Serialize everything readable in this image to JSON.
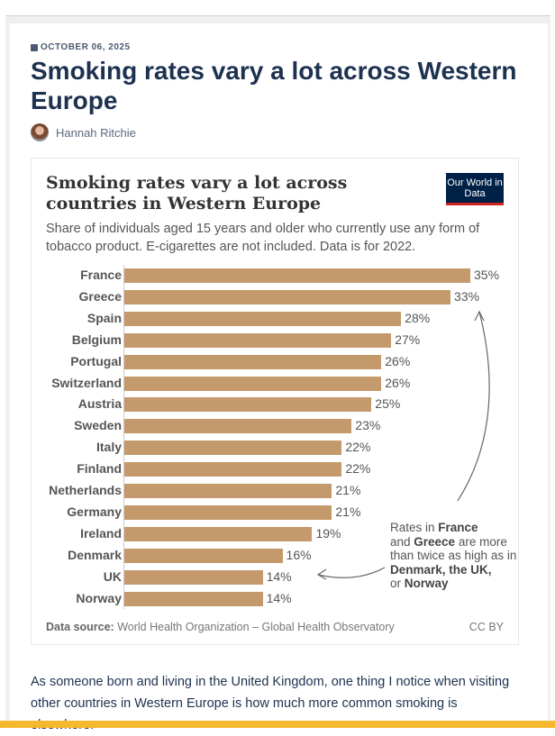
{
  "article": {
    "date": "OCTOBER 06, 2025",
    "title": "Smoking rates vary a lot across Western Europe",
    "author": "Hannah Ritchie",
    "body": "As someone born and living in the United Kingdom, one thing I notice when visiting other countries in Western Europe is how much more common smoking is elsewhere."
  },
  "chart_data": {
    "type": "bar",
    "title": "Smoking rates vary a lot across countries in Western Europe",
    "subtitle": "Share of individuals aged 15 years and older who currently use any form of tobacco product. E-cigarettes are not included. Data is for 2022.",
    "logo": "Our World in Data",
    "categories": [
      "France",
      "Greece",
      "Spain",
      "Belgium",
      "Portugal",
      "Switzerland",
      "Austria",
      "Sweden",
      "Italy",
      "Finland",
      "Netherlands",
      "Germany",
      "Ireland",
      "Denmark",
      "UK",
      "Norway"
    ],
    "values": [
      35,
      33,
      28,
      27,
      26,
      26,
      25,
      23,
      22,
      22,
      21,
      21,
      19,
      16,
      14,
      14
    ],
    "unit": "%",
    "bar_color": "#c49a6c",
    "annotation": {
      "p1": "Rates in ",
      "b1": "France",
      "p2": " and ",
      "b2": "Greece",
      "p3": " are more than twice as high as in ",
      "b3": "Denmark, the UK,",
      "p4": " or ",
      "b4": "Norway"
    },
    "source_label": "Data source:",
    "source": "World Health Organization – Global Health Observatory",
    "license": "CC BY"
  }
}
